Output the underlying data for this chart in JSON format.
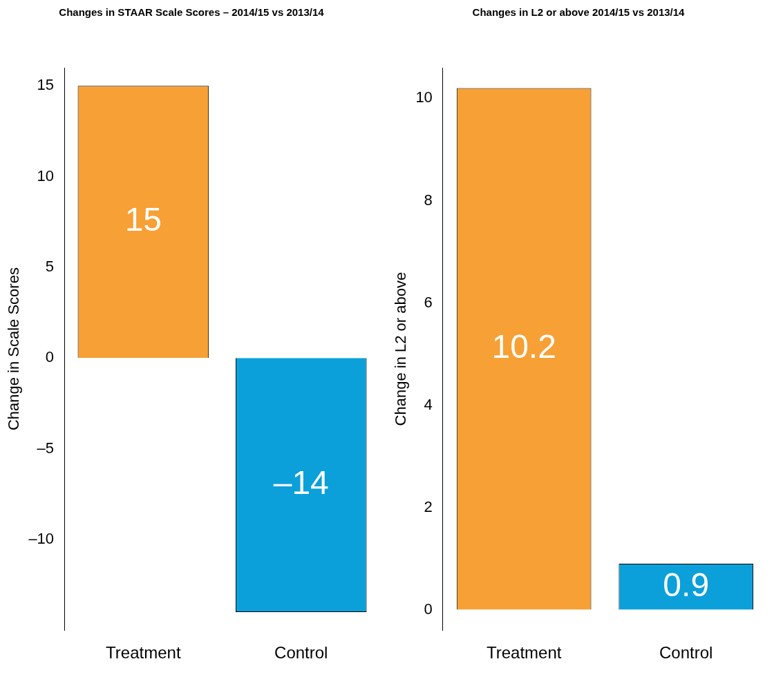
{
  "chart_data": [
    {
      "type": "bar",
      "title": "Changes in STAAR Scale Scores – 2014/15 vs 2013/14",
      "ylabel": "Change in Scale Scores",
      "categories": [
        "Treatment",
        "Control"
      ],
      "values": [
        15,
        -14
      ],
      "value_labels": [
        "15",
        "–14"
      ],
      "colors": [
        "#f7a035",
        "#0ba0da"
      ],
      "ylim": [
        -15,
        16
      ],
      "yticks": [
        {
          "value": -10,
          "label": "–10"
        },
        {
          "value": -5,
          "label": "–5"
        },
        0,
        5,
        10,
        15
      ],
      "grid": false,
      "legend": false
    },
    {
      "type": "bar",
      "title": "Changes in L2 or above 2014/15 vs 2013/14",
      "ylabel": "Change in L2 or above",
      "categories": [
        "Treatment",
        "Control"
      ],
      "values": [
        10.2,
        0.9
      ],
      "colors": [
        "#f7a035",
        "#0ba0da"
      ],
      "ylim": [
        -0.4,
        10.6
      ],
      "yticks": [
        0,
        2,
        4,
        6,
        8,
        10
      ],
      "data_labels": true,
      "grid": false,
      "legend": false
    }
  ]
}
